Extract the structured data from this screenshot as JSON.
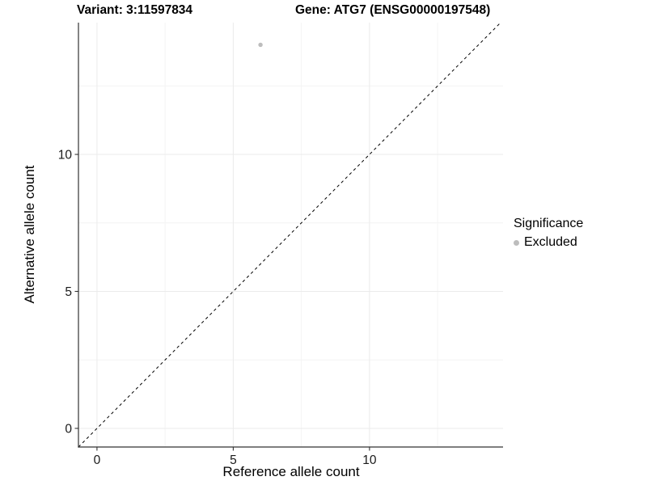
{
  "header": {
    "variant_title": "Variant: 3:11597834",
    "gene_title": "Gene: ATG7 (ENSG00000197548)"
  },
  "chart_data": {
    "type": "scatter",
    "xlabel": "Reference allele count",
    "ylabel": "Alternative allele count",
    "xlim": [
      -0.68,
      14.9
    ],
    "ylim": [
      -0.68,
      14.81
    ],
    "x_ticks": [
      0,
      5,
      10
    ],
    "y_ticks": [
      0,
      5,
      10
    ],
    "x_minor_ticks": [
      2.5,
      7.5,
      12.5
    ],
    "y_minor_ticks": [
      2.5,
      7.5,
      12.5
    ],
    "grid": "major+minor",
    "points": [
      {
        "x": 6,
        "y": 14,
        "series": "Excluded"
      }
    ],
    "reference_line": {
      "type": "identity",
      "slope": 1,
      "intercept": 0,
      "style": "dashed"
    },
    "legend": {
      "title": "Significance",
      "position": "right",
      "items": [
        {
          "label": "Excluded",
          "color": "#bdbdbd"
        }
      ]
    }
  },
  "colors": {
    "background": "#ffffff",
    "grid_major": "#ebebeb",
    "grid_minor": "#f4f4f4",
    "axis": "#333333",
    "tick_text": "#1a1a1a",
    "dashed_line": "#000000",
    "point": "#bdbdbd"
  }
}
